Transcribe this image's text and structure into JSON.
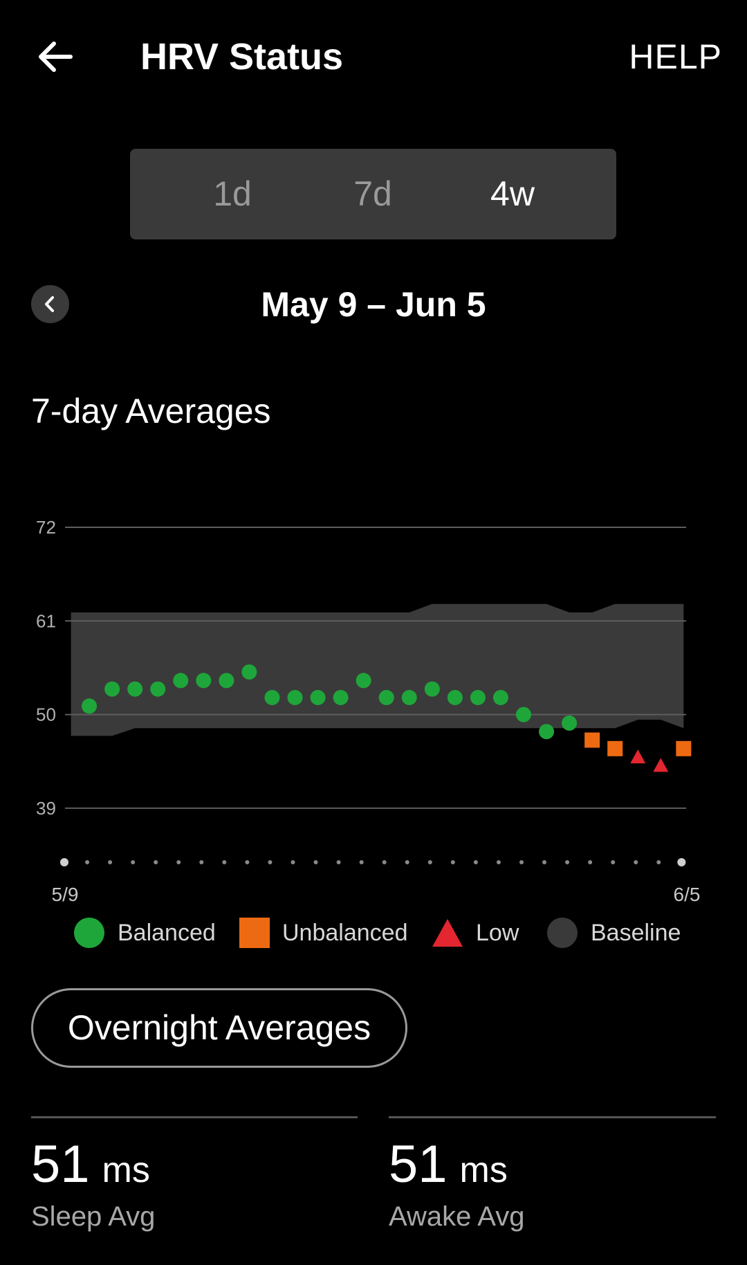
{
  "header": {
    "title": "HRV Status",
    "help_label": "HELP"
  },
  "periods": {
    "p1": "1d",
    "p2": "7d",
    "p3": "4w",
    "selected": "4w"
  },
  "date_range": "May 9 – Jun 5",
  "section_title": "7-day Averages",
  "chart_data": {
    "type": "scatter",
    "title": "7-day Averages",
    "ylim": [
      33,
      78
    ],
    "yticks": [
      "72",
      "61",
      "50",
      "39"
    ],
    "x_start_label": "5/9",
    "x_end_label": "6/5",
    "legend": {
      "balanced": "Balanced",
      "unbalanced": "Unbalanced",
      "low": "Low",
      "baseline": "Baseline"
    },
    "colors": {
      "balanced": "#1fa63a",
      "unbalanced": "#ee6a12",
      "low": "#e3262f",
      "baseline": "#3a3a3a"
    },
    "points": [
      {
        "day": 1,
        "value": 51,
        "status": "balanced"
      },
      {
        "day": 2,
        "value": 53,
        "status": "balanced"
      },
      {
        "day": 3,
        "value": 53,
        "status": "balanced"
      },
      {
        "day": 4,
        "value": 53,
        "status": "balanced"
      },
      {
        "day": 5,
        "value": 54,
        "status": "balanced"
      },
      {
        "day": 6,
        "value": 54,
        "status": "balanced"
      },
      {
        "day": 7,
        "value": 54,
        "status": "balanced"
      },
      {
        "day": 8,
        "value": 55,
        "status": "balanced"
      },
      {
        "day": 9,
        "value": 52,
        "status": "balanced"
      },
      {
        "day": 10,
        "value": 52,
        "status": "balanced"
      },
      {
        "day": 11,
        "value": 52,
        "status": "balanced"
      },
      {
        "day": 12,
        "value": 52,
        "status": "balanced"
      },
      {
        "day": 13,
        "value": 54,
        "status": "balanced"
      },
      {
        "day": 14,
        "value": 52,
        "status": "balanced"
      },
      {
        "day": 15,
        "value": 52,
        "status": "balanced"
      },
      {
        "day": 16,
        "value": 53,
        "status": "balanced"
      },
      {
        "day": 17,
        "value": 52,
        "status": "balanced"
      },
      {
        "day": 18,
        "value": 52,
        "status": "balanced"
      },
      {
        "day": 19,
        "value": 52,
        "status": "balanced"
      },
      {
        "day": 20,
        "value": 50,
        "status": "balanced"
      },
      {
        "day": 21,
        "value": 48,
        "status": "balanced"
      },
      {
        "day": 22,
        "value": 49,
        "status": "balanced"
      },
      {
        "day": 23,
        "value": 47,
        "status": "unbalanced"
      },
      {
        "day": 24,
        "value": 46,
        "status": "unbalanced"
      },
      {
        "day": 25,
        "value": 45,
        "status": "low"
      },
      {
        "day": 26,
        "value": 44,
        "status": "low"
      },
      {
        "day": 27,
        "value": 46,
        "status": "unbalanced"
      }
    ],
    "baseline": [
      {
        "day": 0.2,
        "low": 47.5,
        "high": 62
      },
      {
        "day": 2.0,
        "low": 47.5,
        "high": 62
      },
      {
        "day": 3.0,
        "low": 48.4,
        "high": 62
      },
      {
        "day": 15.0,
        "low": 48.4,
        "high": 62
      },
      {
        "day": 16.0,
        "low": 48.4,
        "high": 63
      },
      {
        "day": 21.0,
        "low": 48.4,
        "high": 63
      },
      {
        "day": 22.0,
        "low": 48.4,
        "high": 62
      },
      {
        "day": 23.0,
        "low": 48.4,
        "high": 62
      },
      {
        "day": 24.0,
        "low": 48.4,
        "high": 63
      },
      {
        "day": 25.0,
        "low": 49.4,
        "high": 63
      },
      {
        "day": 26.0,
        "low": 49.4,
        "high": 63
      },
      {
        "day": 27.0,
        "low": 48.4,
        "high": 63
      }
    ]
  },
  "overnight_button": "Overnight Averages",
  "stats": {
    "sleep": {
      "value": "51",
      "unit": "ms",
      "label": "Sleep Avg"
    },
    "awake": {
      "value": "51",
      "unit": "ms",
      "label": "Awake Avg"
    }
  }
}
